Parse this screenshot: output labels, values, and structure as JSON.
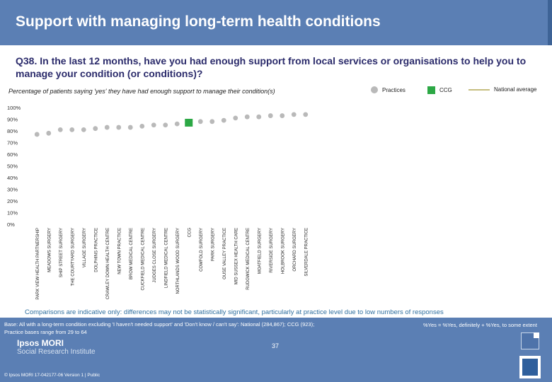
{
  "header": {
    "title": "Support with managing long-term health conditions"
  },
  "question": "Q38. In the last 12 months, have you had enough support from local services or organisations to help you to manage your condition (or conditions)?",
  "subtitle": "Percentage of patients saying 'yes' they have had enough support to manage their condition(s)",
  "legend": {
    "practices": "Practices",
    "ccg": "CCG",
    "national": "National average"
  },
  "colors": {
    "practice": "#b9b9b9",
    "ccg": "#2ca845",
    "national": "#c6bd7f",
    "header": "#5b7fb4"
  },
  "chart_data": {
    "type": "scatter",
    "title": "Percentage of patients saying 'yes' they have had enough support to manage their condition(s)",
    "ylim": [
      0,
      100
    ],
    "yticks": [
      "0%",
      "10%",
      "20%",
      "30%",
      "40%",
      "50%",
      "60%",
      "70%",
      "80%",
      "90%",
      "100%"
    ],
    "ytick_values": [
      0,
      10,
      20,
      30,
      40,
      50,
      60,
      70,
      80,
      90,
      100
    ],
    "categories": [
      "PARK VIEW HEALTH PARTNERSHIP",
      "MEADOWS SURGERY",
      "SHIP STREET SURGERY",
      "THE COURTYARD SURGERY",
      "VILLAGE SURGERY",
      "DOLPHINS PRACTICE",
      "CRAWLEY DOWN HEALTH CENTRE",
      "NEW TOWN PRACTICE",
      "BROW MEDICAL CENTRE",
      "CUCKFIELD MEDICAL CENTRE",
      "JUDGES CLOSE SURGERY",
      "LINDFIELD MEDICAL CENTRE",
      "NORTHLANDS WOOD SURGERY",
      "CCG",
      "COWFOLD SURGERY",
      "PARK SURGERY",
      "OUSE VALLEY PRACTICE",
      "MID SUSSEX HEALTH CARE",
      "RUDGWICK MEDICAL CENTRE",
      "MOATFIELD SURGERY",
      "RIVERSIDE SURGERY",
      "HOLBROOK SURGERY",
      "ORCHARD SURGERY",
      "SILVERDALE PRACTICE"
    ],
    "values": [
      77,
      78,
      81,
      81,
      81,
      82,
      83,
      83,
      83,
      84,
      85,
      85,
      86,
      87,
      88,
      88,
      89,
      91,
      92,
      92,
      93,
      93,
      94,
      94
    ],
    "ccg_index": 13,
    "national_average": null
  },
  "notes": {
    "comparisons": "Comparisons are indicative only: differences may not be statistically significant, particularly at practice level due to low numbers of responses",
    "base_line1": "Base: All with a long-term condition excluding 'I haven't needed support' and 'Don't know / can't say': National (284,867); CCG (923);",
    "base_line2": "Practice bases range from 29 to 64",
    "yes_definition": "%Yes = %Yes, definitely + %Yes, to some extent"
  },
  "footer": {
    "ipsos": "Ipsos MORI",
    "sri": "Social Research Institute",
    "page": "37",
    "copyright": "© Ipsos MORI     17-042177-06 Version 1 | Public"
  }
}
